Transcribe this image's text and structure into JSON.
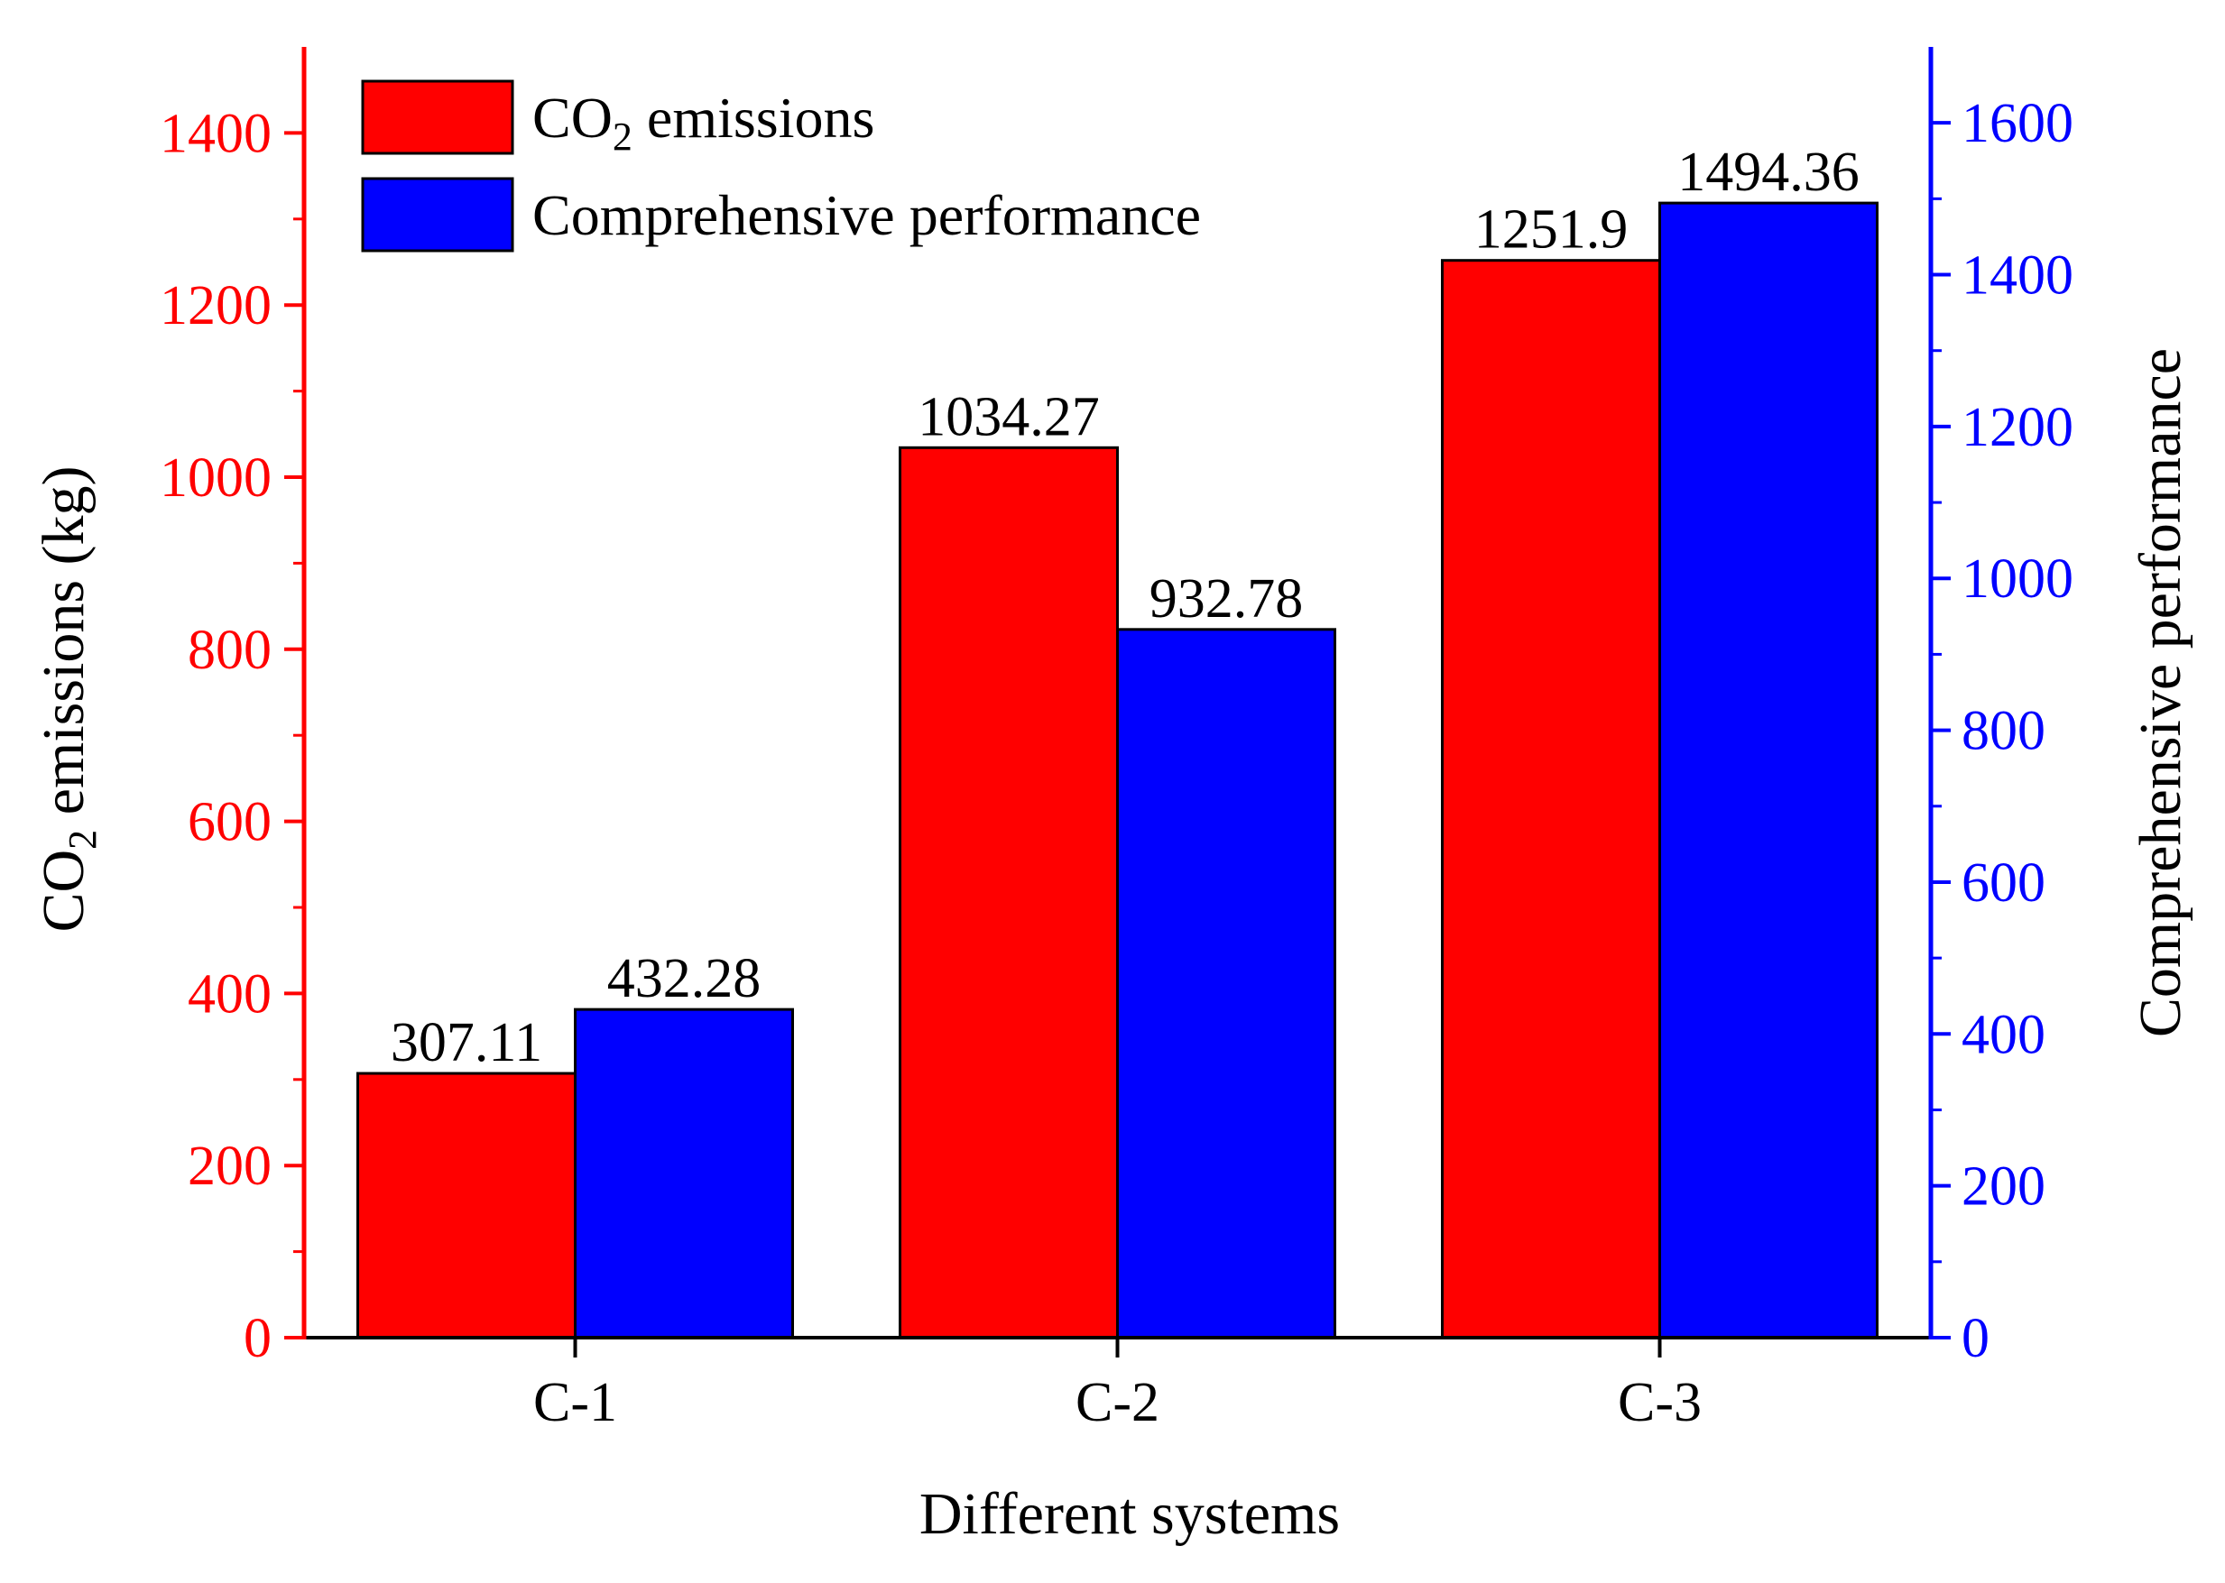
{
  "chart_data": {
    "type": "bar",
    "categories": [
      "C-1",
      "C-2",
      "C-3"
    ],
    "series": [
      {
        "name": "CO2 emissions",
        "axis": "left",
        "color": "#ff0000",
        "values": [
          307.11,
          1034.27,
          1251.9
        ],
        "labels": [
          "307.11",
          "1034.27",
          "1251.9"
        ]
      },
      {
        "name": "Comprehensive performance",
        "axis": "right",
        "color": "#0000ff",
        "values": [
          432.28,
          932.78,
          1494.36
        ],
        "labels": [
          "432.28",
          "932.78",
          "1494.36"
        ]
      }
    ],
    "xlabel": "Different systems",
    "ylabel_left": {
      "main": "CO",
      "sub": "2",
      "rest": " emissions (kg)"
    },
    "ylabel_right": "Comprehensive performance",
    "legend": [
      {
        "main": "CO",
        "sub": "2",
        "rest": " emissions",
        "color": "#ff0000"
      },
      {
        "main": "Comprehensive performance",
        "sub": "",
        "rest": "",
        "color": "#0000ff"
      }
    ],
    "legend_position": "top-left",
    "ylim_left": [
      0,
      1500
    ],
    "ylim_right": [
      0,
      1700
    ],
    "yticks_left": [
      0,
      200,
      400,
      600,
      800,
      1000,
      1200,
      1400
    ],
    "yticks_right": [
      0,
      200,
      400,
      600,
      800,
      1000,
      1200,
      1400,
      1600
    ],
    "left_axis_color": "#ff0000",
    "right_axis_color": "#0000ff",
    "grid": false
  }
}
